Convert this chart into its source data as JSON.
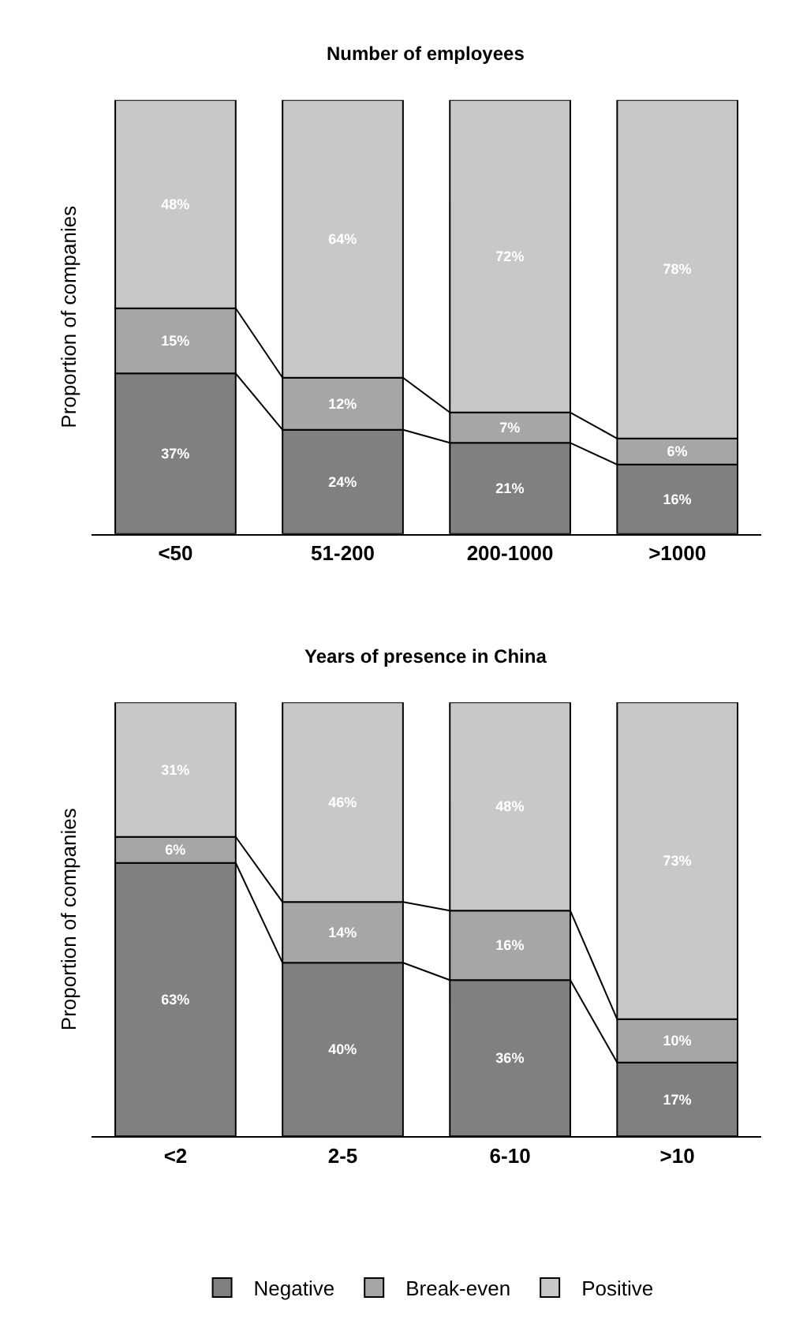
{
  "chart_data": [
    {
      "type": "bar",
      "stacked": true,
      "title": "Number of employees",
      "ylabel": "Proportion of companies",
      "categories": [
        "<50",
        "51-200",
        "200-1000",
        ">1000"
      ],
      "ylim": [
        0,
        100
      ],
      "tick_labels": "x",
      "legend": "bottom",
      "series": [
        {
          "name": "Negative",
          "color": "#808080",
          "values": [
            37,
            24,
            21,
            16
          ],
          "value_labels": [
            "37%",
            "24%",
            "21%",
            "16%"
          ]
        },
        {
          "name": "Break-even",
          "color": "#a6a6a6",
          "values": [
            15,
            12,
            7,
            6
          ],
          "value_labels": [
            "15%",
            "12%",
            "7%",
            "6%"
          ]
        },
        {
          "name": "Positive",
          "color": "#c8c8c8",
          "values": [
            48,
            64,
            72,
            78
          ],
          "value_labels": [
            "48%",
            "64%",
            "72%",
            "78%"
          ]
        }
      ]
    },
    {
      "type": "bar",
      "stacked": true,
      "title": "Years of presence in China",
      "ylabel": "Proportion of companies",
      "categories": [
        "<2",
        "2-5",
        "6-10",
        ">10"
      ],
      "ylim": [
        0,
        100
      ],
      "tick_labels": "x",
      "series": [
        {
          "color": "#808080",
          "values": [
            63,
            40,
            36,
            17
          ],
          "value_labels": [
            "63%",
            "40%",
            "36%",
            "17%"
          ]
        },
        {
          "color": "#a6a6a6",
          "values": [
            6,
            14,
            16,
            10
          ],
          "value_labels": [
            "6%",
            "14%",
            "16%",
            "10%"
          ]
        },
        {
          "color": "#c8c8c8",
          "values": [
            31,
            46,
            48,
            73
          ],
          "value_labels": [
            "31%",
            "46%",
            "48%",
            "73%"
          ]
        }
      ]
    }
  ]
}
